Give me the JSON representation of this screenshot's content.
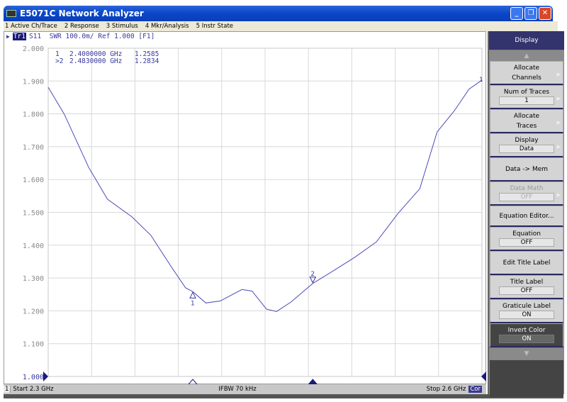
{
  "window": {
    "title": "E5071C Network Analyzer"
  },
  "menu": [
    "1 Active Ch/Trace",
    "2 Response",
    "3 Stimulus",
    "4 Mkr/Analysis",
    "5 Instr State"
  ],
  "trace_header": {
    "trace": "Tr1",
    "text": "S11  SWR 100.0m/ Ref 1.000 [F1]"
  },
  "markers": [
    {
      "label": "1",
      "prefix": " 1",
      "freq": "2.4000000 GHz",
      "value": "1.2585"
    },
    {
      "label": "2",
      "prefix": ">2",
      "freq": "2.4830000 GHz",
      "value": "1.2834"
    }
  ],
  "status": {
    "channel": "1",
    "start": "Start 2.3 GHz",
    "ifbw": "IFBW 70 kHz",
    "stop": "Stop 2.6 GHz",
    "cor": "Cor"
  },
  "softkeys": {
    "title": "Display",
    "items": [
      {
        "label": "Allocate Channels",
        "value": null,
        "sub": true
      },
      {
        "label": "Num of Traces",
        "value": "1",
        "sub": true
      },
      {
        "label": "Allocate Traces",
        "value": null,
        "sub": true
      },
      {
        "label": "Display",
        "value": "Data",
        "sub": true
      },
      {
        "label": "Data -> Mem",
        "value": null
      },
      {
        "label": "Data Math",
        "value": "OFF",
        "sub": true,
        "disabled": true
      },
      {
        "label": "Equation Editor...",
        "value": null
      },
      {
        "label": "Equation",
        "value": "OFF"
      },
      {
        "label": "Edit Title Label",
        "value": null
      },
      {
        "label": "Title Label",
        "value": "OFF"
      },
      {
        "label": "Graticule Label",
        "value": "ON"
      },
      {
        "label": "Invert Color",
        "value": "ON",
        "selected": true
      }
    ]
  },
  "colors": {
    "trace": "#4a4ab8",
    "grid": "#d8d8d8",
    "softkey_title": "#33336e"
  },
  "chart_data": {
    "type": "line",
    "xlabel": "",
    "ylabel": "",
    "xlim": [
      2.3,
      2.6
    ],
    "ylim": [
      1.0,
      2.0
    ],
    "y_ticks": [
      "2.000",
      "1.900",
      "1.800",
      "1.700",
      "1.600",
      "1.500",
      "1.400",
      "1.300",
      "1.200",
      "1.100",
      "1.000"
    ],
    "grid": true,
    "series": [
      {
        "x": [
          2.3,
          2.311,
          2.328,
          2.341,
          2.358,
          2.371,
          2.385,
          2.395,
          2.4,
          2.409,
          2.419,
          2.434,
          2.441,
          2.451,
          2.458,
          2.468,
          2.483,
          2.498,
          2.512,
          2.527,
          2.542,
          2.557,
          2.569,
          2.581,
          2.591,
          2.6
        ],
        "y": [
          1.881,
          1.8,
          1.637,
          1.54,
          1.486,
          1.43,
          1.335,
          1.27,
          1.2585,
          1.224,
          1.23,
          1.265,
          1.26,
          1.205,
          1.198,
          1.227,
          1.2834,
          1.324,
          1.363,
          1.41,
          1.497,
          1.572,
          1.745,
          1.81,
          1.875,
          1.903
        ]
      }
    ],
    "marker_x": [
      2.4,
      2.483
    ]
  }
}
